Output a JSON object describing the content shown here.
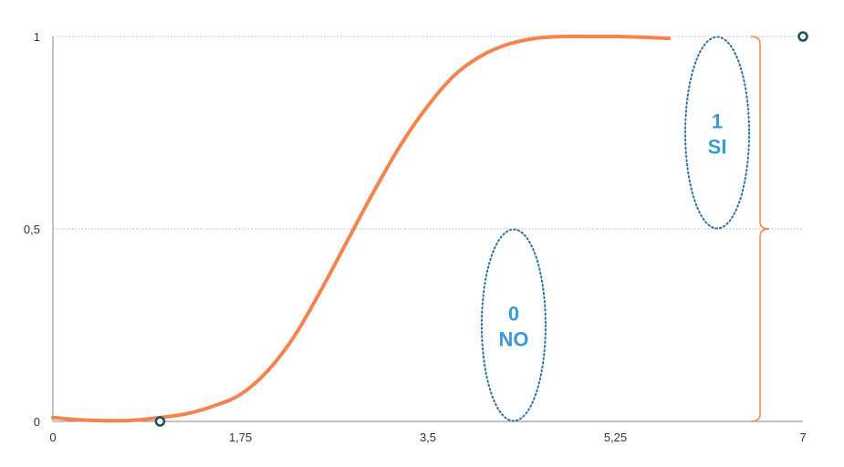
{
  "chart_data": {
    "type": "line",
    "title": "",
    "xlabel": "",
    "ylabel": "",
    "xlim": [
      0,
      7
    ],
    "ylim": [
      0,
      1
    ],
    "x_ticks": [
      "0",
      "1,75",
      "3,5",
      "5,25",
      "7"
    ],
    "y_ticks": [
      "0",
      "0,5",
      "1"
    ],
    "grid": "horizontal dotted",
    "series": [
      {
        "color": "#F4834D",
        "x": [
          0,
          0.25,
          0.5,
          0.75,
          1.0,
          1.25,
          1.5,
          1.75,
          2.0,
          2.25,
          2.5,
          2.75,
          3.0,
          3.25,
          3.5,
          3.75,
          4.0,
          4.25,
          4.5,
          4.75,
          5.0,
          5.25,
          5.5,
          5.75
        ],
        "values": [
          0.01,
          0.004,
          0.002,
          0.003,
          0.01,
          0.02,
          0.04,
          0.07,
          0.13,
          0.22,
          0.34,
          0.47,
          0.6,
          0.72,
          0.82,
          0.9,
          0.95,
          0.98,
          0.995,
          1.0,
          1.0,
          1.0,
          0.998,
          0.995
        ]
      }
    ],
    "points": [
      {
        "x": 1.0,
        "y": 0,
        "color": "#1F4E5F"
      },
      {
        "x": 7.0,
        "y": 1,
        "color": "#1F4E5F"
      }
    ],
    "annotations": [
      {
        "lines": [
          "0",
          "NO"
        ],
        "center_x": 4.3,
        "center_y": 0.25,
        "color": "#3A9AD9"
      },
      {
        "lines": [
          "1",
          "SI"
        ],
        "center_x": 6.2,
        "center_y": 0.75,
        "color": "#3A9AD9"
      }
    ],
    "brace": {
      "x": 6.6,
      "from": 0,
      "to": 1,
      "color": "#F4834D"
    }
  }
}
